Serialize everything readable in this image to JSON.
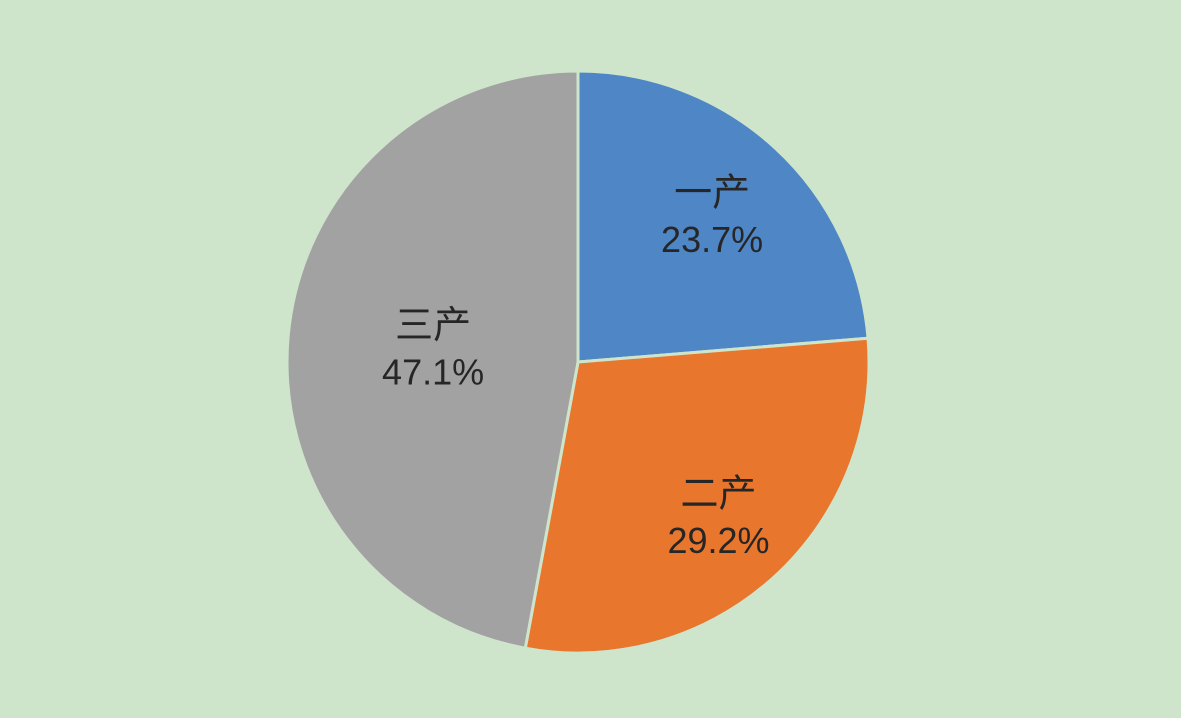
{
  "background_color": "#cee5cc",
  "text_color": "#262626",
  "chart_data": {
    "type": "pie",
    "title": "",
    "categories": [
      "一产",
      "二产",
      "三产"
    ],
    "values": [
      23.7,
      29.2,
      47.1
    ],
    "unit": "%",
    "slices": [
      {
        "name": "一产",
        "value": 23.7,
        "pct_label": "23.7%",
        "color": "#4e86c6",
        "label_radius_frac": 0.68
      },
      {
        "name": "二产",
        "value": 29.2,
        "pct_label": "29.2%",
        "color": "#e8762d",
        "label_radius_frac": 0.72
      },
      {
        "name": "三产",
        "value": 47.1,
        "pct_label": "47.1%",
        "color": "#a2a2a2",
        "label_radius_frac": 0.5
      }
    ],
    "start_angle_deg": 0,
    "direction": "clockwise",
    "legend": "none",
    "labels_inside": true,
    "slice_gap_color_matches_background": true
  }
}
